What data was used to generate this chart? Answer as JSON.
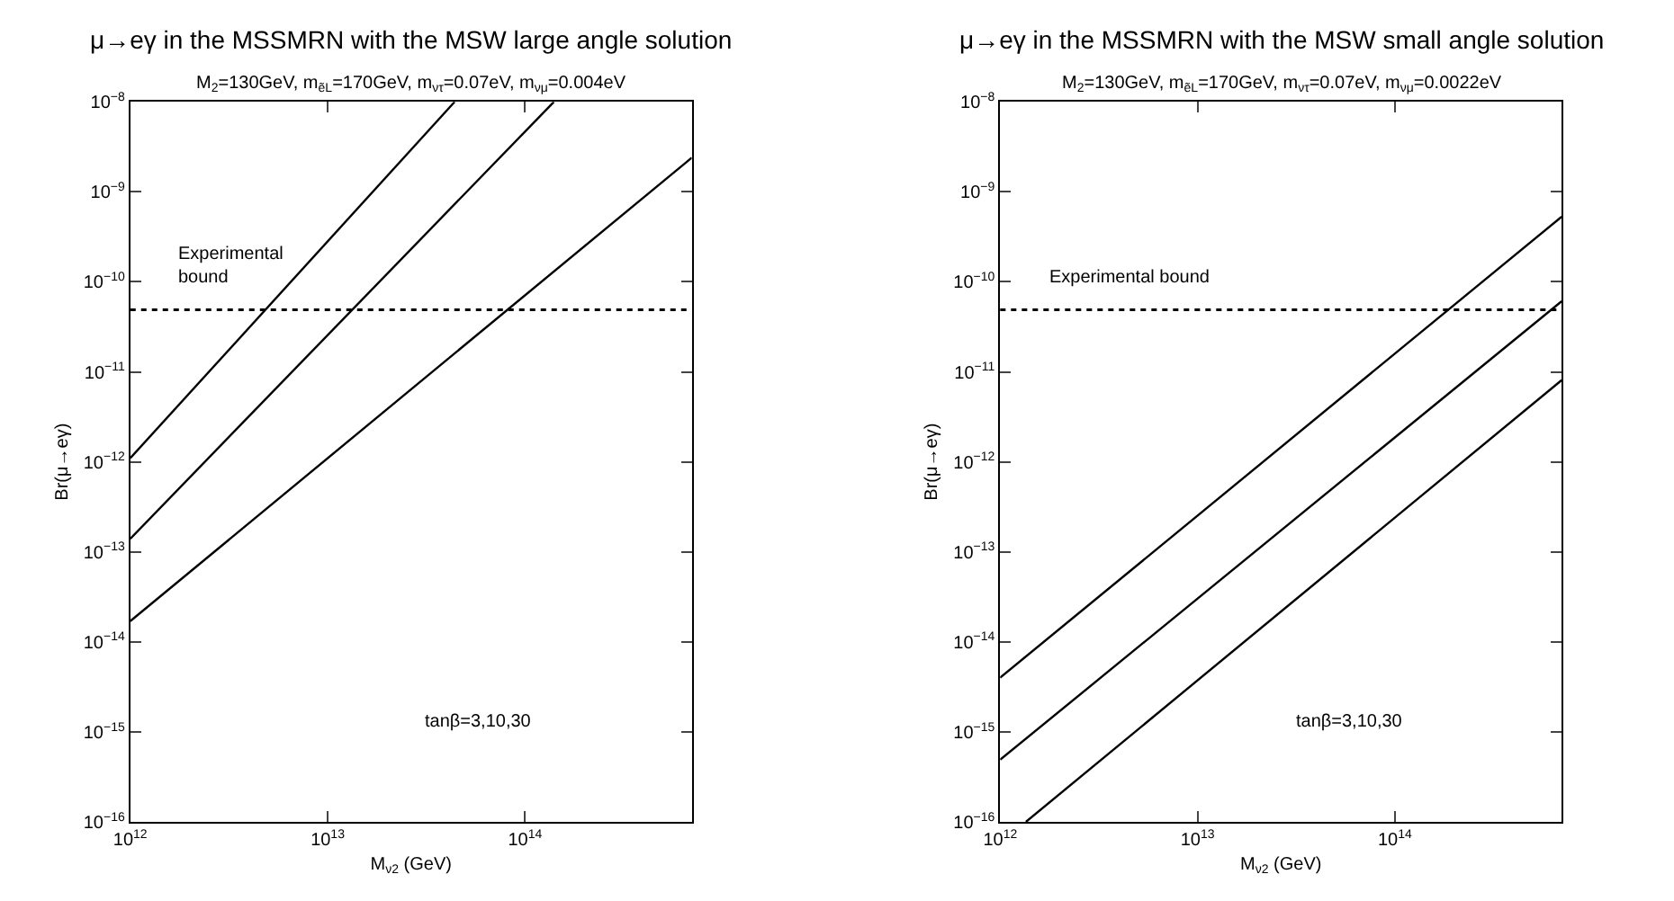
{
  "chart_data": [
    {
      "type": "line",
      "title": "μ→eγ in the MSSMRN with the MSW large angle solution",
      "subtitle": "M$_{2}$=130GeV, m$_{ẽL}$=170GeV, m$_{ντ}$=0.07eV, m$_{νμ}$=0.004eV",
      "xlabel": "M$_{ν2}$ (GeV)",
      "ylabel": "Br(μ→eγ)",
      "log": "xy",
      "marker": "none",
      "line_style": "solid",
      "xlim": [
        1000000000000.0,
        700000000000000.0
      ],
      "xticks": [
        {
          "value": 1000000000000.0,
          "label": "10$^{12}$"
        },
        {
          "value": 10000000000000.0,
          "label": "10$^{13}$"
        },
        {
          "value": 100000000000000.0,
          "label": "10$^{14}$"
        }
      ],
      "ylim": [
        1e-16,
        1e-08
      ],
      "yticks": [
        {
          "value": 1e-16,
          "label": "10$^{−16}$"
        },
        {
          "value": 1e-15,
          "label": "10$^{−15}$"
        },
        {
          "value": 1e-14,
          "label": "10$^{−14}$"
        },
        {
          "value": 1e-13,
          "label": "10$^{−13}$"
        },
        {
          "value": 1e-12,
          "label": "10$^{−12}$"
        },
        {
          "value": 1e-11,
          "label": "10$^{−11}$"
        },
        {
          "value": 1e-10,
          "label": "10$^{−10}$"
        },
        {
          "value": 1e-09,
          "label": "10$^{−9}$"
        },
        {
          "value": 1e-08,
          "label": "10$^{−8}$"
        }
      ],
      "series": [
        {
          "color": "#000000",
          "x": [
            1000000000000.0,
            44000000000000.0
          ],
          "values": [
            1.1e-12,
            1e-08
          ]
        },
        {
          "color": "#000000",
          "x": [
            1000000000000.0,
            140000000000000.0
          ],
          "values": [
            1.4e-13,
            1e-08
          ]
        },
        {
          "color": "#000000",
          "x": [
            1000000000000.0,
            700000000000000.0
          ],
          "values": [
            1.7e-14,
            2.4e-09
          ]
        }
      ],
      "ref_lines": [
        {
          "axis": "y",
          "value": 4.9e-11,
          "label": "Experimental\nbound",
          "color": "#000000",
          "line_style": "dotted"
        }
      ],
      "annotations": [
        "tanβ=3,10,30"
      ]
    },
    {
      "type": "line",
      "title": "μ→eγ in the MSSMRN with the MSW small angle solution",
      "subtitle": "M$_{2}$=130GeV, m$_{ẽL}$=170GeV, m$_{ντ}$=0.07eV, m$_{νμ}$=0.0022eV",
      "xlabel": "M$_{ν2}$ (GeV)",
      "ylabel": "Br(μ→eγ)",
      "log": "xy",
      "marker": "none",
      "line_style": "solid",
      "xlim": [
        1000000000000.0,
        700000000000000.0
      ],
      "xticks": [
        {
          "value": 1000000000000.0,
          "label": "10$^{12}$"
        },
        {
          "value": 10000000000000.0,
          "label": "10$^{13}$"
        },
        {
          "value": 100000000000000.0,
          "label": "10$^{14}$"
        }
      ],
      "ylim": [
        1e-16,
        1e-08
      ],
      "yticks": [
        {
          "value": 1e-16,
          "label": "10$^{−16}$"
        },
        {
          "value": 1e-15,
          "label": "10$^{−15}$"
        },
        {
          "value": 1e-14,
          "label": "10$^{−14}$"
        },
        {
          "value": 1e-13,
          "label": "10$^{−13}$"
        },
        {
          "value": 1e-12,
          "label": "10$^{−12}$"
        },
        {
          "value": 1e-11,
          "label": "10$^{−11}$"
        },
        {
          "value": 1e-10,
          "label": "10$^{−10}$"
        },
        {
          "value": 1e-09,
          "label": "10$^{−9}$"
        },
        {
          "value": 1e-08,
          "label": "10$^{−8}$"
        }
      ],
      "series": [
        {
          "color": "#000000",
          "x": [
            1000000000000.0,
            700000000000000.0
          ],
          "values": [
            4e-15,
            5.3e-10
          ]
        },
        {
          "color": "#000000",
          "x": [
            1000000000000.0,
            700000000000000.0
          ],
          "values": [
            4.9e-16,
            6.1e-11
          ]
        },
        {
          "color": "#000000",
          "x": [
            1350000000000.0,
            700000000000000.0
          ],
          "values": [
            1e-16,
            8.1e-12
          ]
        }
      ],
      "ref_lines": [
        {
          "axis": "y",
          "value": 4.9e-11,
          "label": "Experimental bound",
          "color": "#000000",
          "line_style": "dotted"
        }
      ],
      "annotations": [
        "tanβ=3,10,30"
      ]
    }
  ]
}
